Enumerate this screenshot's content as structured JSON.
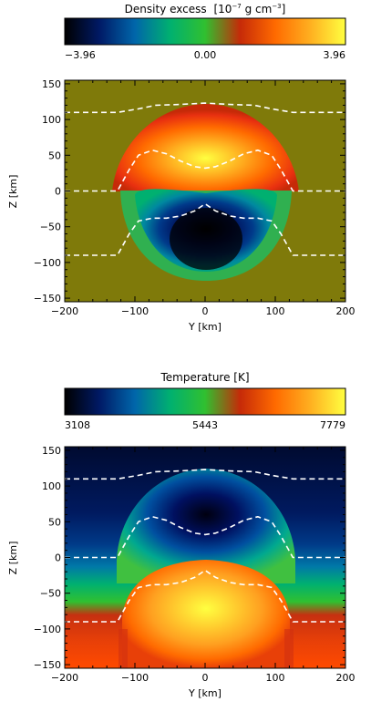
{
  "chart_data": [
    {
      "type": "heatmap",
      "colorbar": {
        "title_text": "Density excess",
        "unit_text": "[10",
        "unit_exp": "−7",
        "unit_rest": " g cm",
        "unit_exp2": "−3",
        "unit_close": "]",
        "ticks": [
          "−3.96",
          "0.00",
          "3.96"
        ],
        "range": [
          -3.96,
          3.96
        ],
        "colormap": [
          "#000000",
          "#001a66",
          "#0066aa",
          "#00b070",
          "#30c030",
          "#c62a08",
          "#ff6a00",
          "#ffb020",
          "#ffff40"
        ]
      },
      "xlabel": "Y [km]",
      "ylabel": "Z [km]",
      "xticks": [
        "−200",
        "−100",
        "0",
        "100",
        "200"
      ],
      "yticks": [
        "150",
        "100",
        "50",
        "0",
        "−50",
        "−100",
        "−150"
      ],
      "xlim": [
        -200,
        200
      ],
      "ylim": [
        -155,
        155
      ],
      "background": "#7f7a0a",
      "contours": [
        {
          "x": [
            -200,
            -125,
            -95,
            -70,
            -40,
            -20,
            0,
            20,
            40,
            70,
            95,
            125,
            200
          ],
          "y": [
            110,
            110,
            115,
            120,
            121,
            122,
            123,
            122,
            121,
            120,
            115,
            110,
            110
          ]
        },
        {
          "x": [
            -200,
            -125,
            -108,
            -95,
            -75,
            -55,
            -35,
            -15,
            0,
            15,
            35,
            55,
            75,
            95,
            108,
            125,
            200
          ],
          "y": [
            0,
            0,
            30,
            50,
            57,
            52,
            42,
            34,
            32,
            34,
            42,
            52,
            57,
            50,
            30,
            0,
            0
          ]
        },
        {
          "x": [
            -200,
            -125,
            -108,
            -95,
            -75,
            -55,
            -35,
            -15,
            0,
            15,
            35,
            55,
            75,
            95,
            108,
            125,
            200
          ],
          "y": [
            -90,
            -90,
            -60,
            -42,
            -38,
            -38,
            -35,
            -28,
            -18,
            -28,
            -35,
            -38,
            -38,
            -42,
            -60,
            -90,
            -90
          ]
        }
      ],
      "features": [
        {
          "kind": "positive-cap",
          "center_z": 65,
          "peak": 3.96
        },
        {
          "kind": "negative-core",
          "center_z": -60,
          "peak": -3.96
        }
      ]
    },
    {
      "type": "heatmap",
      "colorbar": {
        "title_text": "Temperature [K]",
        "ticks": [
          "3108",
          "5443",
          "7779"
        ],
        "range": [
          3108,
          7779
        ],
        "colormap": [
          "#000000",
          "#001a66",
          "#0066aa",
          "#00b070",
          "#30c030",
          "#c62a08",
          "#ff6a00",
          "#ffb020",
          "#ffff40"
        ]
      },
      "xlabel": "Y [km]",
      "ylabel": "Z [km]",
      "xticks": [
        "−200",
        "−100",
        "0",
        "100",
        "200"
      ],
      "yticks": [
        "150",
        "100",
        "50",
        "0",
        "−50",
        "−100",
        "−150"
      ],
      "xlim": [
        -200,
        200
      ],
      "ylim": [
        -155,
        155
      ],
      "contours": "same-as-first"
    }
  ]
}
